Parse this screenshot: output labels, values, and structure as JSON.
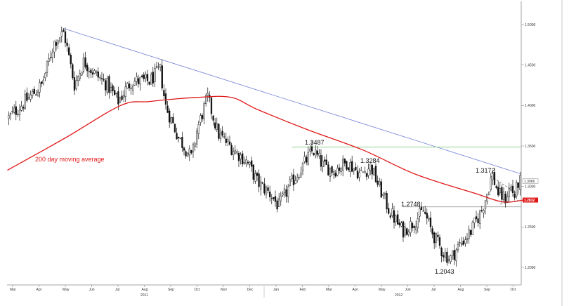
{
  "colors": {
    "candle": "#111111",
    "moving_average": "#e01818",
    "trendline": "#6f7fd6",
    "resistance": "#8ed08e",
    "support": "#999999",
    "channel": "#555555"
  },
  "chart_data": {
    "type": "candlestick",
    "x": [
      "Mar 2011",
      "Apr 2011",
      "May 2011",
      "Jun 2011",
      "Jul 2011",
      "Aug 2011",
      "Sep 2011",
      "Oct 2011",
      "Nov 2011",
      "Dec 2011",
      "Jan 2012",
      "Feb 2012",
      "Mar 2012",
      "Apr 2012",
      "May 2012",
      "Jun 2012",
      "Jul 2012",
      "Aug 2012",
      "Sep 2012",
      "Oct 2012"
    ],
    "x_tick_labels": [
      "Mar",
      "Apr",
      "May",
      "Jun",
      "Jul",
      "Aug",
      "Sep",
      "Oct",
      "Nov",
      "Dec",
      "Jan",
      "Feb",
      "Mar",
      "Apr",
      "May",
      "Jun",
      "Jul",
      "Aug",
      "Sep",
      "Oct"
    ],
    "year_labels": [
      "2011",
      "2012"
    ],
    "y_tick_labels": [
      "1.5000",
      "1.4500",
      "1.4000",
      "1.3500",
      "1.3000",
      "1.2500",
      "1.2000"
    ],
    "ylim": [
      1.18,
      1.52
    ],
    "price_path": [
      {
        "date": "Mar 2011",
        "value": 1.385
      },
      {
        "date": "Apr 2011",
        "value": 1.435
      },
      {
        "date": "May 2011",
        "value": 1.49
      },
      {
        "date": "May 2011",
        "value": 1.425
      },
      {
        "date": "Jun 2011",
        "value": 1.44
      },
      {
        "date": "Jul 2011",
        "value": 1.405
      },
      {
        "date": "Aug 2011",
        "value": 1.43
      },
      {
        "date": "Sep 2011",
        "value": 1.36
      },
      {
        "date": "Oct 2011",
        "value": 1.33
      },
      {
        "date": "Oct 2011",
        "value": 1.415
      },
      {
        "date": "Nov 2011",
        "value": 1.35
      },
      {
        "date": "Dec 2011",
        "value": 1.3
      },
      {
        "date": "Jan 2012",
        "value": 1.27
      },
      {
        "date": "Feb 2012",
        "value": 1.345
      },
      {
        "date": "Mar 2012",
        "value": 1.315
      },
      {
        "date": "Apr 2012",
        "value": 1.325
      },
      {
        "date": "May 2012",
        "value": 1.265
      },
      {
        "date": "Jun 2012",
        "value": 1.27
      },
      {
        "date": "Jul 2012",
        "value": 1.21
      },
      {
        "date": "Aug 2012",
        "value": 1.24
      },
      {
        "date": "Sep 2012",
        "value": 1.31
      },
      {
        "date": "Sep 2012",
        "value": 1.287
      },
      {
        "date": "Oct 2012",
        "value": 1.3066
      }
    ],
    "moving_average": {
      "name": "200 day moving average",
      "points": [
        {
          "date": "Mar 2011",
          "value": 1.32
        },
        {
          "date": "May 2011",
          "value": 1.36
        },
        {
          "date": "Jul 2011",
          "value": 1.4
        },
        {
          "date": "Aug 2011",
          "value": 1.405
        },
        {
          "date": "Oct 2011",
          "value": 1.41
        },
        {
          "date": "Nov 2011",
          "value": 1.41
        },
        {
          "date": "Dec 2011",
          "value": 1.395
        },
        {
          "date": "Feb 2012",
          "value": 1.37
        },
        {
          "date": "Apr 2012",
          "value": 1.345
        },
        {
          "date": "Jun 2012",
          "value": 1.315
        },
        {
          "date": "Aug 2012",
          "value": 1.292
        },
        {
          "date": "Sep 2012",
          "value": 1.281
        },
        {
          "date": "Oct 2012",
          "value": 1.2832
        }
      ]
    },
    "price_labels": [
      "1.3487",
      "1.3284",
      "1.3172",
      "1.2748",
      "1.2043"
    ],
    "annotations": [
      "200 day moving average"
    ],
    "badges": [
      "1.3066",
      "1.2832"
    ],
    "lines": {
      "resistance": 1.3487,
      "support": 1.2748
    },
    "grid": false,
    "legend": "none"
  }
}
